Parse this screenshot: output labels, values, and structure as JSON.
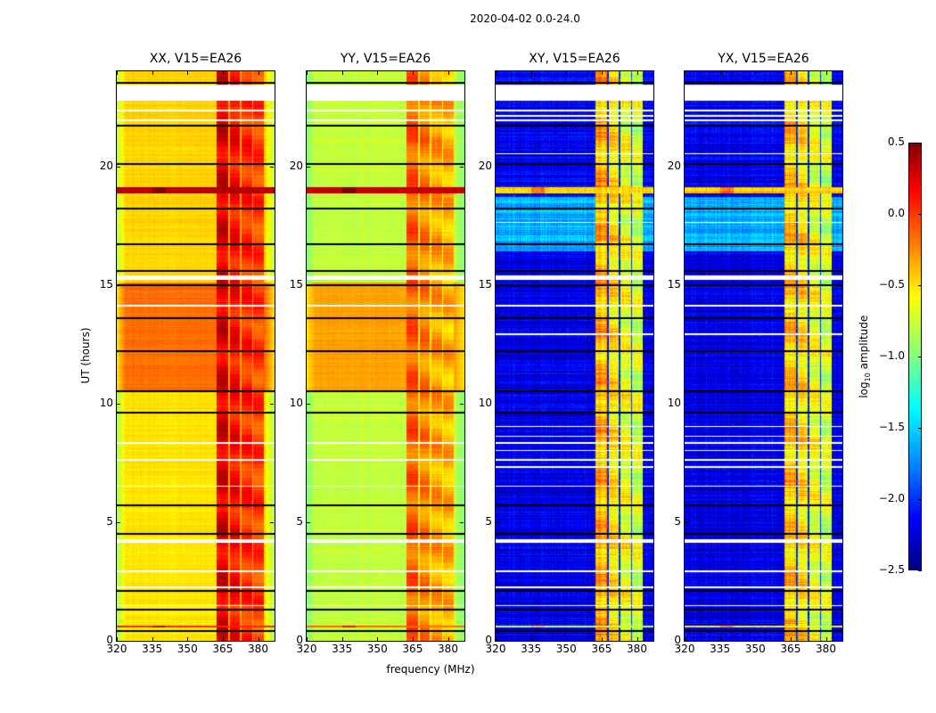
{
  "chart_data": {
    "type": "heatmap",
    "title": "2020-04-02 0.0-24.0",
    "xlabel": "frequency (MHz)",
    "ylabel": "UT (hours)",
    "xlim": [
      320,
      387
    ],
    "ylim": [
      0,
      24
    ],
    "xticks": [
      320,
      335,
      350,
      365,
      380
    ],
    "yticks": [
      0,
      5,
      10,
      15,
      20
    ],
    "colorbar": {
      "label_prefix": "log",
      "label_sub": "10",
      "label_suffix": " amplitude",
      "range": [
        -2.5,
        0.5
      ],
      "ticks": [
        "0.5",
        "0.0",
        "−0.5",
        "−1.0",
        "−1.5",
        "−2.0",
        "−2.5"
      ],
      "tick_values": [
        0.5,
        0.0,
        -0.5,
        -1.0,
        -1.5,
        -2.0,
        -2.5
      ],
      "colormap": "jet"
    },
    "flagged_white_hours": [
      [
        22.75,
        23.45
      ],
      [
        22.3,
        22.38
      ],
      [
        21.9,
        21.98
      ],
      [
        15.2,
        15.4
      ],
      [
        14.1,
        14.15
      ],
      [
        8.3,
        8.38
      ],
      [
        7.6,
        7.65
      ],
      [
        6.5,
        6.55
      ],
      [
        4.15,
        4.3
      ],
      [
        2.9,
        2.95
      ],
      [
        2.2,
        2.3
      ],
      [
        1.45,
        1.52
      ]
    ],
    "black_line_hours": [
      23.5,
      21.7,
      20.1,
      18.2,
      16.7,
      15.6,
      15.0,
      13.6,
      12.2,
      10.5,
      9.6,
      5.7,
      4.5,
      2.1,
      1.3,
      0.4
    ],
    "band_blocks_mhz": [
      [
        362.5,
        367.3
      ],
      [
        367.9,
        372.4
      ],
      [
        373.0,
        377.4
      ],
      [
        378.0,
        382.5
      ]
    ],
    "panels": [
      {
        "title": "XX, V15=EA26",
        "baseline": [
          [
            0,
            10.5,
            -0.55
          ],
          [
            10.5,
            15.1,
            -0.2
          ],
          [
            15.1,
            24,
            -0.5
          ]
        ],
        "band_levels": [
          0.2,
          0.1,
          0.0,
          -0.05
        ],
        "gap_level": -0.35,
        "edge_drop": 0.35,
        "noise": 0.06,
        "events": [
          [
            18.85,
            19.1,
            0.35
          ],
          [
            0.55,
            0.65,
            0.0
          ]
        ],
        "extra_white": []
      },
      {
        "title": "YY, V15=EA26",
        "baseline": [
          [
            0,
            10.5,
            -0.8
          ],
          [
            10.5,
            15.1,
            -0.35
          ],
          [
            15.1,
            24,
            -0.8
          ]
        ],
        "band_levels": [
          -0.15,
          -0.25,
          -0.35,
          -0.4
        ],
        "gap_level": -0.6,
        "edge_drop": 0.2,
        "noise": 0.06,
        "events": [
          [
            18.85,
            19.1,
            0.3
          ],
          [
            0.55,
            0.65,
            -0.2
          ]
        ],
        "extra_white": []
      },
      {
        "title": "XY, V15=EA26",
        "baseline": [
          [
            0,
            16.4,
            -2.2
          ],
          [
            16.4,
            18.7,
            -1.6
          ],
          [
            18.7,
            24,
            -2.15
          ]
        ],
        "band_levels": [
          -0.4,
          -0.55,
          -0.65,
          -0.75
        ],
        "gap_level": -2.0,
        "edge_drop": 0.0,
        "noise": 0.18,
        "events": [
          [
            18.85,
            19.1,
            -0.5
          ],
          [
            0.55,
            0.65,
            -0.7
          ]
        ],
        "extra_white": [
          [
            8.0,
            8.05
          ],
          [
            8.6,
            8.65
          ],
          [
            9.0,
            9.05
          ],
          [
            7.3,
            7.35
          ],
          [
            20.5,
            20.55
          ],
          [
            17.6,
            17.65
          ],
          [
            12.9,
            12.95
          ],
          [
            22.1,
            22.15
          ]
        ]
      },
      {
        "title": "YX, V15=EA26",
        "baseline": [
          [
            0,
            16.4,
            -2.2
          ],
          [
            16.4,
            18.7,
            -1.6
          ],
          [
            18.7,
            24,
            -2.15
          ]
        ],
        "band_levels": [
          -0.45,
          -0.55,
          -0.65,
          -0.75
        ],
        "gap_level": -2.0,
        "edge_drop": 0.0,
        "noise": 0.18,
        "events": [
          [
            18.85,
            19.1,
            -0.5
          ],
          [
            0.55,
            0.65,
            -0.7
          ]
        ],
        "extra_white": [
          [
            8.0,
            8.05
          ],
          [
            8.6,
            8.65
          ],
          [
            9.0,
            9.05
          ],
          [
            7.3,
            7.35
          ],
          [
            20.5,
            20.55
          ],
          [
            17.6,
            17.65
          ],
          [
            12.9,
            12.95
          ],
          [
            22.1,
            22.15
          ]
        ]
      }
    ]
  }
}
